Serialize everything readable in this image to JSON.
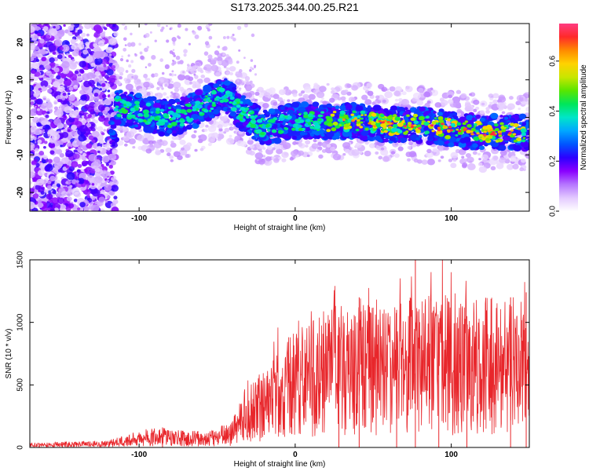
{
  "title": "S173.2025.344.00.25.R21",
  "chart_data": [
    {
      "type": "heatmap",
      "name": "spectrogram",
      "xlabel": "Height of straight line (km)",
      "ylabel": "Frequency (Hz)",
      "xlim": [
        -170,
        150
      ],
      "ylim": [
        -25,
        25
      ],
      "xticks": [
        -100,
        0,
        100
      ],
      "yticks": [
        -20,
        -10,
        0,
        10,
        20
      ],
      "colorbar": {
        "label": "Normalized spectral amplitude",
        "range": [
          0.0,
          0.75
        ],
        "ticks": [
          0.0,
          0.2,
          0.4,
          0.6
        ],
        "colors": [
          "#ffffff",
          "#e3c9ff",
          "#b575ff",
          "#8a00ff",
          "#2b00ff",
          "#0055ff",
          "#00a8ff",
          "#00e6c8",
          "#00e65a",
          "#5ae600",
          "#c8e600",
          "#ffd200",
          "#ff8a00",
          "#ff2a2a",
          "#ff3c82"
        ]
      },
      "ridge": [
        {
          "x": -115,
          "f": 3
        },
        {
          "x": -105,
          "f": 2
        },
        {
          "x": -95,
          "f": 1
        },
        {
          "x": -85,
          "f": 0
        },
        {
          "x": -75,
          "f": 0
        },
        {
          "x": -65,
          "f": 2
        },
        {
          "x": -55,
          "f": 4
        },
        {
          "x": -45,
          "f": 6
        },
        {
          "x": -38,
          "f": 3
        },
        {
          "x": -30,
          "f": 0
        },
        {
          "x": -20,
          "f": -3
        },
        {
          "x": -10,
          "f": -2
        },
        {
          "x": 0,
          "f": -1
        },
        {
          "x": 20,
          "f": -1
        },
        {
          "x": 40,
          "f": -1
        },
        {
          "x": 60,
          "f": -2
        },
        {
          "x": 80,
          "f": -2
        },
        {
          "x": 100,
          "f": -3
        },
        {
          "x": 120,
          "f": -4
        },
        {
          "x": 140,
          "f": -4
        },
        {
          "x": 150,
          "f": -4
        }
      ]
    },
    {
      "type": "line",
      "name": "snr",
      "xlabel": "Height of straight line (km)",
      "ylabel": "SNR (10 * v/v)",
      "xlim": [
        -170,
        150
      ],
      "ylim": [
        0,
        1500
      ],
      "xticks": [
        -100,
        0,
        100
      ],
      "yticks": [
        0,
        500,
        1000,
        1500
      ],
      "color": "#e8262b",
      "series": [
        {
          "x": -170,
          "y": 20
        },
        {
          "x": -140,
          "y": 25
        },
        {
          "x": -120,
          "y": 30
        },
        {
          "x": -110,
          "y": 50
        },
        {
          "x": -100,
          "y": 70
        },
        {
          "x": -90,
          "y": 90
        },
        {
          "x": -80,
          "y": 80
        },
        {
          "x": -70,
          "y": 70
        },
        {
          "x": -60,
          "y": 70
        },
        {
          "x": -50,
          "y": 80
        },
        {
          "x": -40,
          "y": 120
        },
        {
          "x": -30,
          "y": 300
        },
        {
          "x": -20,
          "y": 330
        },
        {
          "x": -10,
          "y": 450
        },
        {
          "x": 0,
          "y": 500
        },
        {
          "x": 20,
          "y": 600
        },
        {
          "x": 40,
          "y": 650
        },
        {
          "x": 60,
          "y": 650
        },
        {
          "x": 80,
          "y": 700
        },
        {
          "x": 100,
          "y": 650
        },
        {
          "x": 120,
          "y": 650
        },
        {
          "x": 150,
          "y": 650
        }
      ],
      "peaks": [
        {
          "x": -85,
          "y": 160
        },
        {
          "x": 28,
          "y": 1020
        },
        {
          "x": 41,
          "y": 1200
        },
        {
          "x": 65,
          "y": 1100
        },
        {
          "x": 77,
          "y": 1500
        },
        {
          "x": 92,
          "y": 1000
        },
        {
          "x": 110,
          "y": 1050
        },
        {
          "x": 138,
          "y": 1200
        },
        {
          "x": 148,
          "y": 1240
        }
      ]
    }
  ]
}
